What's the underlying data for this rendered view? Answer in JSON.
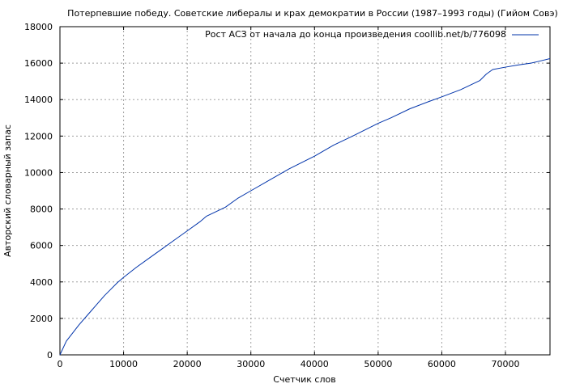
{
  "chart_data": {
    "type": "line",
    "title": "Потерпевшие победу. Советские либералы и крах демократии в России (1987–1993 годы) (Гийом Совэ)",
    "xlabel": "Счетчик слов",
    "ylabel": "Авторский словарный запас",
    "xlim": [
      0,
      77000
    ],
    "ylim": [
      0,
      18000
    ],
    "x_ticks": [
      0,
      10000,
      20000,
      30000,
      40000,
      50000,
      60000,
      70000
    ],
    "y_ticks": [
      0,
      2000,
      4000,
      6000,
      8000,
      10000,
      12000,
      14000,
      16000,
      18000
    ],
    "grid": true,
    "legend_position": "top-right",
    "series": [
      {
        "name": "Рост АСЗ от начала до конца произведения coollib.net/b/776098",
        "color": "#0033aa",
        "x": [
          0,
          1000,
          2000,
          3000,
          4000,
          5000,
          6000,
          7000,
          8000,
          9000,
          10000,
          12000,
          14000,
          16000,
          18000,
          20000,
          22000,
          23000,
          26000,
          28000,
          30000,
          33000,
          36000,
          40000,
          43000,
          46000,
          50000,
          52000,
          55000,
          58000,
          60000,
          63000,
          66000,
          67000,
          68000,
          70000,
          72000,
          74000,
          75000,
          77000
        ],
        "y": [
          0,
          750,
          1200,
          1650,
          2050,
          2450,
          2850,
          3250,
          3600,
          3950,
          4250,
          4800,
          5300,
          5800,
          6300,
          6800,
          7300,
          7600,
          8100,
          8600,
          9000,
          9600,
          10200,
          10900,
          11500,
          12000,
          12700,
          13000,
          13500,
          13900,
          14150,
          14550,
          15050,
          15400,
          15650,
          15780,
          15900,
          16000,
          16080,
          16250
        ]
      }
    ]
  }
}
